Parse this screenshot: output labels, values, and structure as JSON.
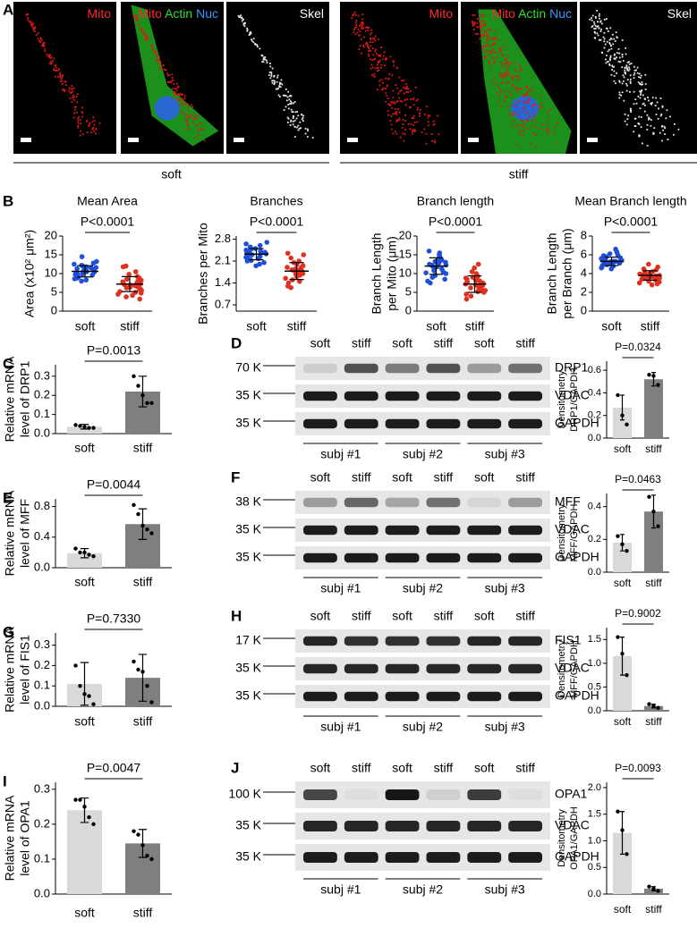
{
  "micrographs": {
    "panel": "A",
    "groups": [
      {
        "name": "soft",
        "images": [
          {
            "labels": [
              {
                "text": "Mito",
                "color": "#ff2a2a"
              }
            ]
          },
          {
            "labels": [
              {
                "text": "Mito",
                "color": "#ff2a2a"
              },
              {
                "text": "Actin",
                "color": "#33dd33"
              },
              {
                "text": "Nuc",
                "color": "#3399ff"
              }
            ]
          },
          {
            "labels": [
              {
                "text": "Skel",
                "color": "#ffffff"
              }
            ]
          }
        ]
      },
      {
        "name": "stiff",
        "images": [
          {
            "labels": [
              {
                "text": "Mito",
                "color": "#ff2a2a"
              }
            ]
          },
          {
            "labels": [
              {
                "text": "Mito",
                "color": "#ff2a2a"
              },
              {
                "text": "Actin",
                "color": "#33dd33"
              },
              {
                "text": "Nuc",
                "color": "#3399ff"
              }
            ]
          },
          {
            "labels": [
              {
                "text": "Skel",
                "color": "#ffffff"
              }
            ]
          }
        ]
      }
    ]
  },
  "blots": [
    {
      "panel": "D",
      "lanes": [
        "soft",
        "stiff",
        "soft",
        "stiff",
        "soft",
        "stiff"
      ],
      "rows": [
        {
          "marker": "70 K",
          "protein": "DRP1"
        },
        {
          "marker": "35 K",
          "protein": "VDAC"
        },
        {
          "marker": "35 K",
          "protein": "GAPDH"
        }
      ],
      "subjects": [
        "subj #1",
        "subj #2",
        "subj #3"
      ]
    },
    {
      "panel": "F",
      "lanes": [
        "soft",
        "stiff",
        "soft",
        "stiff",
        "soft",
        "stiff"
      ],
      "rows": [
        {
          "marker": "38 K",
          "protein": "MFF"
        },
        {
          "marker": "35 K",
          "protein": "VDAC"
        },
        {
          "marker": "35 K",
          "protein": "GAPDH"
        }
      ],
      "subjects": [
        "subj #1",
        "subj #2",
        "subj #3"
      ]
    },
    {
      "panel": "H",
      "lanes": [
        "soft",
        "stiff",
        "soft",
        "stiff",
        "soft",
        "stiff"
      ],
      "rows": [
        {
          "marker": "17 K",
          "protein": "FIS1"
        },
        {
          "marker": "35 K",
          "protein": "VDAC"
        },
        {
          "marker": "35 K",
          "protein": "GAPDH"
        }
      ],
      "subjects": [
        "subj #1",
        "subj #2",
        "subj #3"
      ]
    },
    {
      "panel": "J",
      "lanes": [
        "soft",
        "stiff",
        "soft",
        "stiff",
        "soft",
        "stiff"
      ],
      "rows": [
        {
          "marker": "100 K",
          "protein": "OPA1"
        },
        {
          "marker": "35 K",
          "protein": "VDAC"
        },
        {
          "marker": "35 K",
          "protein": "GAPDH"
        }
      ],
      "subjects": [
        "subj #1",
        "subj #2",
        "subj #3"
      ]
    }
  ],
  "chart_data": [
    {
      "type": "dotplot",
      "panel": "B",
      "title": "Mean Area",
      "ylabel": [
        "Area (x10² μm²)"
      ],
      "categories": [
        "soft",
        "stiff"
      ],
      "colors": [
        "#1f4fd8",
        "#e03020"
      ],
      "ylim": [
        0,
        20
      ],
      "yticks": [
        0,
        5,
        10,
        15,
        20
      ],
      "annotation": "P<0.0001",
      "points": [
        [
          14.5,
          13.2,
          12.8,
          12.5,
          12.2,
          12.0,
          11.8,
          11.5,
          11.3,
          11.0,
          10.9,
          10.7,
          10.5,
          10.4,
          10.2,
          10.0,
          9.8,
          9.6,
          9.5,
          9.3,
          9.0,
          8.8,
          8.6,
          8.3,
          8.0,
          11.6,
          10.8,
          9.9
        ],
        [
          12.0,
          11.8,
          10.5,
          9.8,
          9.2,
          8.8,
          8.5,
          8.2,
          8.0,
          7.8,
          7.5,
          7.3,
          7.0,
          6.8,
          6.6,
          6.4,
          6.2,
          6.0,
          5.8,
          5.5,
          5.2,
          5.0,
          4.8,
          4.5,
          4.2,
          3.8,
          3.2,
          7.1
        ]
      ],
      "values": [
        10.6,
        7.2
      ],
      "errors": [
        1.5,
        2.0
      ]
    },
    {
      "type": "dotplot",
      "title": "Branches",
      "ylabel": [
        "Branches per Mito"
      ],
      "categories": [
        "soft",
        "stiff"
      ],
      "colors": [
        "#1f4fd8",
        "#e03020"
      ],
      "ylim": [
        0.5,
        2.9
      ],
      "yticks": [
        0.7,
        1.4,
        2.1,
        2.8
      ],
      "annotation": "P<0.0001",
      "points": [
        [
          2.7,
          2.65,
          2.6,
          2.55,
          2.5,
          2.48,
          2.45,
          2.42,
          2.4,
          2.38,
          2.35,
          2.33,
          2.3,
          2.28,
          2.25,
          2.22,
          2.2,
          2.18,
          2.15,
          2.12,
          2.1,
          2.05,
          2.0,
          1.95,
          2.3,
          2.36
        ],
        [
          2.35,
          2.3,
          2.2,
          2.1,
          2.05,
          2.0,
          1.95,
          1.9,
          1.88,
          1.85,
          1.8,
          1.78,
          1.75,
          1.72,
          1.7,
          1.68,
          1.65,
          1.6,
          1.55,
          1.5,
          1.45,
          1.4,
          1.3,
          1.25,
          1.8,
          1.82
        ]
      ],
      "values": [
        2.32,
        1.78
      ],
      "errors": [
        0.18,
        0.27
      ]
    },
    {
      "type": "dotplot",
      "title": "Branch length",
      "ylabel": [
        "Branch Length",
        "per Mito (μm)"
      ],
      "categories": [
        "soft",
        "stiff"
      ],
      "colors": [
        "#1f4fd8",
        "#e03020"
      ],
      "ylim": [
        0,
        20
      ],
      "yticks": [
        0,
        5,
        10,
        15,
        20
      ],
      "annotation": "P<0.0001",
      "points": [
        [
          16,
          15.5,
          15,
          14.5,
          14,
          13.6,
          13.2,
          13,
          12.8,
          12.5,
          12.2,
          12,
          11.8,
          11.5,
          11.2,
          11,
          10.8,
          10.5,
          10.2,
          10,
          9.5,
          9,
          8.5,
          8,
          7.5,
          12.3
        ],
        [
          12.5,
          11.5,
          10.5,
          10,
          9.5,
          9.2,
          9,
          8.8,
          8.5,
          8.2,
          8,
          7.8,
          7.5,
          7.2,
          7,
          6.8,
          6.5,
          6.2,
          6,
          5.8,
          5.5,
          5.2,
          5,
          4.5,
          4,
          3.2
        ]
      ],
      "values": [
        12,
        7.2
      ],
      "errors": [
        2.2,
        2.2
      ]
    },
    {
      "type": "dotplot",
      "title": "Mean Branch length",
      "ylabel": [
        "Branch Length",
        "per Branch (μm)"
      ],
      "categories": [
        "soft",
        "stiff"
      ],
      "colors": [
        "#1f4fd8",
        "#e03020"
      ],
      "ylim": [
        0,
        8
      ],
      "yticks": [
        0,
        2,
        4,
        6,
        8
      ],
      "annotation": "P<0.0001",
      "points": [
        [
          6.6,
          6.3,
          6.1,
          6,
          5.9,
          5.8,
          5.7,
          5.6,
          5.5,
          5.45,
          5.4,
          5.35,
          5.3,
          5.25,
          5.2,
          5.15,
          5.1,
          5.05,
          5,
          4.95,
          4.9,
          4.8,
          4.7,
          4.6,
          4.5,
          5.3
        ],
        [
          5,
          4.7,
          4.5,
          4.4,
          4.3,
          4.2,
          4.1,
          4,
          3.95,
          3.9,
          3.85,
          3.8,
          3.75,
          3.7,
          3.65,
          3.6,
          3.55,
          3.5,
          3.45,
          3.4,
          3.3,
          3.2,
          3.1,
          3,
          2.9,
          2.8
        ]
      ],
      "values": [
        5.3,
        3.8
      ],
      "errors": [
        0.45,
        0.5
      ]
    },
    {
      "type": "bar",
      "panel": "C",
      "ylabel": [
        "Relative mRNA",
        "level of DRP1"
      ],
      "categories": [
        "soft",
        "stiff"
      ],
      "colors": [
        "#d9d9d9",
        "#7f7f7f"
      ],
      "ylim": [
        0,
        0.36
      ],
      "yticks": [
        {
          "value": 0,
          "label": "0.0"
        },
        0.1,
        0.2,
        0.3
      ],
      "annotation": "P=0.0013",
      "values": [
        0.036,
        0.22
      ],
      "errors": [
        0.012,
        0.08
      ],
      "points": [
        [
          0.045,
          0.04,
          0.035,
          0.03,
          0.03
        ],
        [
          0.3,
          0.25,
          0.2,
          0.16,
          0.16
        ]
      ]
    },
    {
      "type": "bar",
      "ylabel": [
        "Densitometry",
        "DRP1/GAPDH"
      ],
      "categories": [
        "soft",
        "stiff"
      ],
      "colors": [
        "#d9d9d9",
        "#7f7f7f"
      ],
      "ylim": [
        0,
        0.68
      ],
      "yticks": [
        {
          "value": 0,
          "label": "0.0"
        },
        0.2,
        0.4,
        0.6
      ],
      "annotation": "P=0.0324",
      "values": [
        0.27,
        0.52
      ],
      "errors": [
        0.11,
        0.06
      ],
      "points": [
        [
          0.38,
          0.2,
          0.12
        ],
        [
          0.56,
          0.55,
          0.47
        ]
      ]
    },
    {
      "type": "bar",
      "panel": "E",
      "ylabel": [
        "Relative mRNA",
        "level of MFF"
      ],
      "categories": [
        "soft",
        "stiff"
      ],
      "colors": [
        "#d9d9d9",
        "#7f7f7f"
      ],
      "ylim": [
        0,
        0.9
      ],
      "yticks": [
        {
          "value": 0,
          "label": "0.0"
        },
        0.4,
        0.8
      ],
      "annotation": "P=0.0044",
      "values": [
        0.19,
        0.57
      ],
      "errors": [
        0.06,
        0.2
      ],
      "points": [
        [
          0.25,
          0.2,
          0.2,
          0.17,
          0.15
        ],
        [
          0.82,
          0.7,
          0.55,
          0.5,
          0.45
        ]
      ]
    },
    {
      "type": "bar",
      "ylabel": [
        "Densitometry",
        "MFF/GAPDH"
      ],
      "categories": [
        "soft",
        "stiff"
      ],
      "colors": [
        "#d9d9d9",
        "#7f7f7f"
      ],
      "ylim": [
        0,
        0.48
      ],
      "yticks": [
        {
          "value": 0,
          "label": "0.0"
        },
        0.2,
        0.4
      ],
      "annotation": "P=0.0463",
      "values": [
        0.18,
        0.37
      ],
      "errors": [
        0.05,
        0.1
      ],
      "points": [
        [
          0.22,
          0.17,
          0.13
        ],
        [
          0.46,
          0.37,
          0.28
        ]
      ]
    },
    {
      "type": "bar",
      "panel": "G",
      "ylabel": [
        "Relative mRNA",
        "level of FIS1"
      ],
      "categories": [
        "soft",
        "stiff"
      ],
      "colors": [
        "#d9d9d9",
        "#7f7f7f"
      ],
      "ylim": [
        0,
        0.36
      ],
      "yticks": [
        {
          "value": 0,
          "label": "0.0"
        },
        0.1,
        0.2,
        0.3
      ],
      "annotation": "P=0.7330",
      "values": [
        0.11,
        0.14
      ],
      "errors": [
        0.105,
        0.115
      ],
      "points": [
        [
          0.2,
          0.1,
          0.06,
          0.05,
          0.01
        ],
        [
          0.22,
          0.18,
          0.17,
          0.1,
          0.02
        ]
      ]
    },
    {
      "type": "bar",
      "ylabel": [
        "Densitometry",
        "MFF/GAPDH"
      ],
      "categories": [
        "soft",
        "stiff"
      ],
      "colors": [
        "#d9d9d9",
        "#7f7f7f"
      ],
      "ylim": [
        0,
        1.75
      ],
      "yticks": [
        {
          "value": 0,
          "label": "0.0"
        },
        0.5,
        {
          "value": 1,
          "label": "1.0"
        },
        1.5
      ],
      "annotation": "P=0.9002",
      "values": [
        1.15,
        0.1
      ],
      "errors": [
        0.4,
        0.04
      ],
      "points": [
        [
          1.55,
          1.2,
          0.75
        ],
        [
          0.14,
          0.1,
          0.06
        ]
      ]
    },
    {
      "type": "bar",
      "panel": "I",
      "ylabel": [
        "Relative mRNA",
        "level of OPA1"
      ],
      "categories": [
        "soft",
        "stiff"
      ],
      "colors": [
        "#d9d9d9",
        "#7f7f7f"
      ],
      "ylim": [
        0,
        0.32
      ],
      "yticks": [
        {
          "value": 0,
          "label": "0.0"
        },
        0.1,
        0.2,
        0.3
      ],
      "annotation": "P=0.0047",
      "values": [
        0.24,
        0.145
      ],
      "errors": [
        0.035,
        0.04
      ],
      "points": [
        [
          0.27,
          0.27,
          0.25,
          0.22,
          0.2
        ],
        [
          0.18,
          0.17,
          0.14,
          0.11,
          0.1
        ]
      ]
    },
    {
      "type": "bar",
      "ylabel": [
        "Densitometry",
        "OPA1/GAPDH"
      ],
      "categories": [
        "soft",
        "stiff"
      ],
      "colors": [
        "#d9d9d9",
        "#7f7f7f"
      ],
      "ylim": [
        0,
        2.1
      ],
      "yticks": [
        {
          "value": 0,
          "label": "0.0"
        },
        0.5,
        {
          "value": 1,
          "label": "1.0"
        },
        1.5,
        {
          "value": 2,
          "label": "2.0"
        }
      ],
      "annotation": "P=0.0093",
      "values": [
        1.15,
        0.1
      ],
      "errors": [
        0.4,
        0.04
      ],
      "points": [
        [
          1.55,
          1.2,
          0.75
        ],
        [
          0.14,
          0.1,
          0.06
        ]
      ]
    }
  ]
}
